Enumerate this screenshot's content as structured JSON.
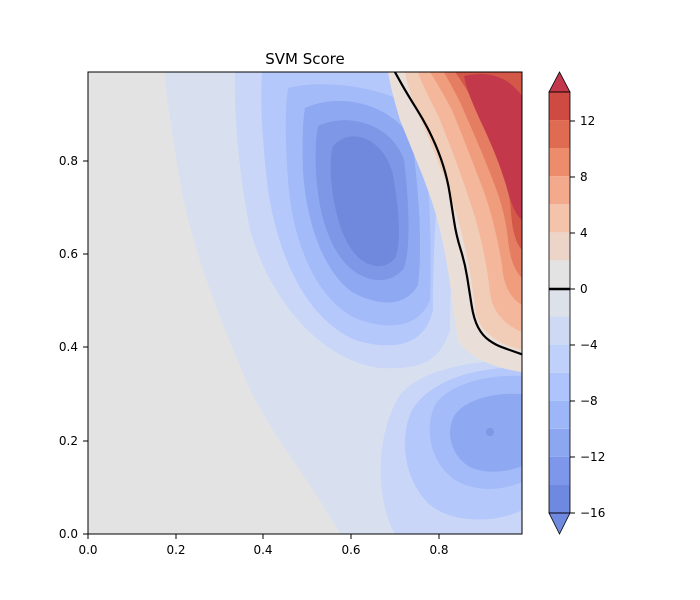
{
  "chart_data": {
    "type": "heatmap",
    "subtype": "filled-contour",
    "title": "SVM Score",
    "xlabel": "",
    "ylabel": "",
    "xlim": [
      0.0,
      0.99
    ],
    "ylim": [
      0.0,
      0.99
    ],
    "x_ticks": [
      "0.0",
      "0.2",
      "0.4",
      "0.6",
      "0.8"
    ],
    "y_ticks": [
      "0.0",
      "0.2",
      "0.4",
      "0.6",
      "0.8"
    ],
    "grid": false,
    "colormap": "coolwarm",
    "decision_boundary": {
      "level": 0,
      "color": "#000000",
      "points": [
        [
          0.7,
          0.99
        ],
        [
          0.73,
          0.94
        ],
        [
          0.77,
          0.88
        ],
        [
          0.8,
          0.82
        ],
        [
          0.82,
          0.76
        ],
        [
          0.83,
          0.7
        ],
        [
          0.84,
          0.64
        ],
        [
          0.86,
          0.58
        ],
        [
          0.87,
          0.52
        ],
        [
          0.88,
          0.46
        ],
        [
          0.9,
          0.425
        ],
        [
          0.93,
          0.405
        ],
        [
          0.96,
          0.395
        ],
        [
          0.99,
          0.385
        ]
      ]
    },
    "colorbar": {
      "ticks": [
        "12",
        "8",
        "4",
        "0",
        "−4",
        "−8",
        "−12",
        "−16"
      ],
      "levels": [
        -16,
        -14,
        -12,
        -10,
        -8,
        -6,
        -4,
        -2,
        0,
        2,
        4,
        6,
        8,
        10,
        12,
        14
      ],
      "colors": [
        "#6f88e0",
        "#7e97ea",
        "#8da6f2",
        "#9db6f8",
        "#aec4fc",
        "#bfd0fb",
        "#cedaf5",
        "#dce1ea",
        "#e3e3e3",
        "#ecd4c8",
        "#f3c3ac",
        "#f3a98b",
        "#ed8c6c",
        "#e06b53",
        "#cf4a43",
        "#c1374b"
      ]
    }
  }
}
